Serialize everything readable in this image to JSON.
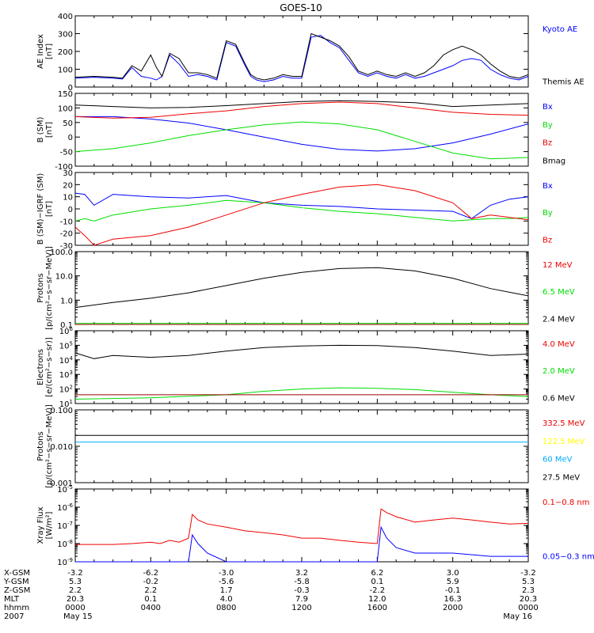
{
  "title": "GOES-10",
  "colors": {
    "black": "#000000",
    "blue": "#0000ff",
    "red": "#ee0000",
    "green": "#00dd00",
    "darkred": "#990000",
    "yellow": "#ffff00",
    "cyan": "#00aaff"
  },
  "chart_data": [
    {
      "type": "line",
      "id": "ae",
      "ylabel": [
        "AE Index",
        "[nT]"
      ],
      "scale": "linear",
      "ylim": [
        0,
        400
      ],
      "yticks": [
        0,
        100,
        200,
        300,
        400
      ],
      "ytick_labels": [
        "0",
        "100",
        "200",
        "300",
        "400"
      ],
      "series": [
        {
          "name": "Kyoto AE",
          "color": "#0000ff",
          "x": [
            0,
            1,
            2,
            2.5,
            3,
            3.5,
            4,
            4.3,
            4.6,
            5,
            5.5,
            6,
            6.5,
            7,
            7.5,
            8,
            8.5,
            9,
            9.3,
            9.6,
            10,
            10.5,
            11,
            11.5,
            12,
            12.5,
            13,
            13.5,
            14,
            14.5,
            15,
            15.5,
            16,
            16.5,
            17,
            17.5,
            18,
            18.5,
            19,
            19.5,
            20,
            20.5,
            21,
            21.5,
            22,
            22.5,
            23,
            23.5,
            24
          ],
          "y": [
            50,
            55,
            50,
            45,
            110,
            60,
            50,
            40,
            60,
            180,
            130,
            60,
            70,
            60,
            40,
            250,
            230,
            120,
            60,
            40,
            30,
            40,
            60,
            50,
            50,
            280,
            290,
            250,
            220,
            150,
            80,
            60,
            80,
            60,
            50,
            70,
            50,
            60,
            80,
            100,
            120,
            150,
            160,
            150,
            100,
            70,
            50,
            40,
            60
          ]
        },
        {
          "name": "Themis AE",
          "color": "#000000",
          "x": [
            0,
            1,
            2,
            2.5,
            3,
            3.5,
            4,
            4.3,
            4.6,
            5,
            5.5,
            6,
            6.5,
            7,
            7.5,
            8,
            8.5,
            9,
            9.3,
            9.6,
            10,
            10.5,
            11,
            11.5,
            12,
            12.5,
            13,
            13.5,
            14,
            14.5,
            15,
            15.5,
            16,
            16.5,
            17,
            17.5,
            18,
            18.5,
            19,
            19.5,
            20,
            20.5,
            21,
            21.5,
            22,
            22.5,
            23,
            23.5,
            24
          ],
          "y": [
            55,
            60,
            55,
            50,
            120,
            90,
            180,
            110,
            60,
            190,
            160,
            80,
            80,
            70,
            50,
            260,
            240,
            130,
            70,
            50,
            40,
            50,
            70,
            60,
            60,
            300,
            280,
            260,
            230,
            170,
            90,
            70,
            90,
            70,
            60,
            80,
            60,
            80,
            120,
            180,
            210,
            230,
            210,
            180,
            130,
            90,
            60,
            50,
            70
          ]
        }
      ],
      "legend": [
        {
          "label": "Kyoto AE",
          "color": "#0000ff"
        },
        {
          "label": "Themis AE",
          "color": "#000000"
        }
      ]
    },
    {
      "type": "line",
      "id": "bsm",
      "ylabel": [
        "B (SM)",
        "[nT]"
      ],
      "scale": "linear",
      "ylim": [
        -100,
        150
      ],
      "yticks": [
        -100,
        -50,
        0,
        50,
        100,
        150
      ],
      "ytick_labels": [
        "-100",
        "-50",
        "0",
        "50",
        "100",
        "150"
      ],
      "series": [
        {
          "name": "Bx",
          "color": "#0000ff",
          "x": [
            0,
            2,
            4,
            6,
            8,
            10,
            12,
            14,
            16,
            18,
            20,
            22,
            24
          ],
          "y": [
            70,
            70,
            62,
            48,
            25,
            0,
            -25,
            -42,
            -48,
            -40,
            -20,
            10,
            45
          ]
        },
        {
          "name": "By",
          "color": "#00dd00",
          "x": [
            0,
            2,
            4,
            6,
            8,
            10,
            12,
            14,
            16,
            18,
            20,
            22,
            24
          ],
          "y": [
            -50,
            -40,
            -20,
            5,
            25,
            42,
            52,
            45,
            25,
            -15,
            -55,
            -75,
            -70
          ]
        },
        {
          "name": "Bz",
          "color": "#ee0000",
          "x": [
            0,
            2,
            4,
            6,
            8,
            10,
            12,
            14,
            16,
            18,
            20,
            22,
            24
          ],
          "y": [
            70,
            65,
            68,
            80,
            90,
            105,
            115,
            120,
            115,
            100,
            85,
            78,
            75
          ]
        },
        {
          "name": "Bmag",
          "color": "#000000",
          "x": [
            0,
            2,
            4,
            6,
            8,
            10,
            12,
            14,
            16,
            18,
            20,
            22,
            24
          ],
          "y": [
            110,
            105,
            100,
            102,
            108,
            115,
            122,
            125,
            122,
            118,
            105,
            110,
            115
          ]
        }
      ],
      "legend": [
        {
          "label": "Bx",
          "color": "#0000ff"
        },
        {
          "label": "By",
          "color": "#00dd00"
        },
        {
          "label": "Bz",
          "color": "#ee0000"
        },
        {
          "label": "Bmag",
          "color": "#000000"
        }
      ]
    },
    {
      "type": "line",
      "id": "bigrf",
      "ylabel": [
        "B (SM)−IGRF (SM)",
        "[nT]"
      ],
      "scale": "linear",
      "ylim": [
        -30,
        30
      ],
      "yticks": [
        -30,
        -20,
        -10,
        0,
        10,
        20,
        30
      ],
      "ytick_labels": [
        "-30",
        "-20",
        "-10",
        "0",
        "10",
        "20",
        "30"
      ],
      "series": [
        {
          "name": "Bx",
          "color": "#0000ff",
          "x": [
            0,
            0.5,
            1,
            2,
            4,
            6,
            8,
            10,
            12,
            14,
            16,
            18,
            20,
            21,
            22,
            23,
            24
          ],
          "y": [
            13,
            12,
            3,
            12,
            10,
            9,
            11,
            5,
            3,
            2,
            0,
            -1,
            -2,
            -8,
            3,
            8,
            10
          ]
        },
        {
          "name": "By",
          "color": "#00dd00",
          "x": [
            0,
            0.5,
            1,
            2,
            4,
            6,
            8,
            10,
            12,
            14,
            16,
            18,
            20,
            21,
            22,
            23,
            24
          ],
          "y": [
            -10,
            -8,
            -10,
            -5,
            0,
            3,
            7,
            5,
            1,
            -2,
            -4,
            -7,
            -10,
            -9,
            -8,
            -8,
            -7
          ]
        },
        {
          "name": "Bz",
          "color": "#ee0000",
          "x": [
            0,
            0.5,
            1,
            2,
            4,
            6,
            8,
            10,
            12,
            14,
            16,
            18,
            20,
            21,
            22,
            23,
            24
          ],
          "y": [
            -15,
            -22,
            -30,
            -25,
            -22,
            -15,
            -5,
            5,
            12,
            18,
            20,
            15,
            5,
            -8,
            -5,
            -7,
            -9
          ]
        }
      ],
      "legend": [
        {
          "label": "Bx",
          "color": "#0000ff"
        },
        {
          "label": "By",
          "color": "#00dd00"
        },
        {
          "label": "Bz",
          "color": "#ee0000"
        }
      ]
    },
    {
      "type": "line",
      "id": "protons1",
      "ylabel": [
        "Protons",
        "[p/(cm²−s−sr−MeV)]"
      ],
      "scale": "log",
      "ylim": [
        0.1,
        100
      ],
      "yticks": [
        0.1,
        1,
        10,
        100
      ],
      "ytick_labels": [
        "0.1",
        "1.0",
        "10.0",
        "100.0"
      ],
      "series": [
        {
          "name": "2.4 MeV",
          "color": "#000000",
          "x": [
            0,
            2,
            4,
            6,
            8,
            10,
            12,
            14,
            16,
            18,
            20,
            22,
            24
          ],
          "y": [
            0.5,
            0.8,
            1.2,
            2,
            4,
            8,
            14,
            20,
            22,
            16,
            8,
            3,
            1.5
          ]
        },
        {
          "name": "6.5 MeV",
          "color": "#00dd00",
          "x": [
            0,
            12,
            24
          ],
          "y": [
            0.11,
            0.11,
            0.11
          ]
        },
        {
          "name": "12 MeV",
          "color": "#990000",
          "x": [
            0,
            12,
            24
          ],
          "y": [
            0.1,
            0.1,
            0.1
          ]
        }
      ],
      "legend": [
        {
          "label": "12 MeV",
          "color": "#ee0000"
        },
        {
          "label": "6.5 MeV",
          "color": "#00dd00"
        },
        {
          "label": "2.4 MeV",
          "color": "#000000"
        }
      ]
    },
    {
      "type": "line",
      "id": "electrons",
      "ylabel": [
        "Electrons",
        "[e/(cm²−s−sr)]"
      ],
      "scale": "log",
      "ylim": [
        10,
        1000000
      ],
      "yticks": [
        10,
        100,
        1000,
        10000,
        100000,
        1000000
      ],
      "ytick_labels": [
        "10^1",
        "10^2",
        "10^3",
        "10^4",
        "10^5",
        "10^6"
      ],
      "series": [
        {
          "name": "0.6 MeV",
          "color": "#000000",
          "x": [
            0,
            1,
            2,
            4,
            6,
            8,
            10,
            12,
            14,
            16,
            18,
            20,
            22,
            24
          ],
          "y": [
            30000,
            12000,
            20000,
            15000,
            20000,
            40000,
            70000,
            90000,
            100000,
            95000,
            70000,
            40000,
            20000,
            25000
          ]
        },
        {
          "name": "2.0 MeV",
          "color": "#00dd00",
          "x": [
            0,
            4,
            8,
            10,
            12,
            14,
            16,
            18,
            20,
            22,
            24
          ],
          "y": [
            20,
            25,
            40,
            70,
            100,
            120,
            110,
            90,
            60,
            40,
            30
          ]
        },
        {
          "name": "4.0 MeV",
          "color": "#990000",
          "x": [
            0,
            24
          ],
          "y": [
            40,
            40
          ]
        }
      ],
      "legend": [
        {
          "label": "4.0 MeV",
          "color": "#ee0000"
        },
        {
          "label": "2.0 MeV",
          "color": "#00dd00"
        },
        {
          "label": "0.6 MeV",
          "color": "#000000"
        }
      ]
    },
    {
      "type": "line",
      "id": "protons2",
      "ylabel": [
        "Protons",
        "[p/(cm²−s−sr−MeV)]"
      ],
      "scale": "log",
      "ylim": [
        0.001,
        0.1
      ],
      "yticks": [
        0.001,
        0.01,
        0.1
      ],
      "ytick_labels": [
        "0.001",
        "0.010",
        "0.100"
      ],
      "series": [
        {
          "name": "27.5 MeV",
          "color": "#000000",
          "x": [
            0,
            24
          ],
          "y": [
            0.02,
            0.02
          ]
        },
        {
          "name": "60 MeV",
          "color": "#00aaff",
          "x": [
            0,
            24
          ],
          "y": [
            0.013,
            0.013
          ]
        }
      ],
      "legend": [
        {
          "label": "332.5 MeV",
          "color": "#ee0000"
        },
        {
          "label": "122.5 MeV",
          "color": "#ffff00"
        },
        {
          "label": "60 MeV",
          "color": "#00aaff"
        },
        {
          "label": "27.5 MeV",
          "color": "#000000"
        }
      ]
    },
    {
      "type": "line",
      "id": "xray",
      "ylabel": [
        "Xray Flux",
        "[W/m²]"
      ],
      "scale": "log",
      "ylim": [
        1e-09,
        1e-05
      ],
      "yticks": [
        1e-09,
        1e-08,
        1e-07,
        1e-06,
        1e-05
      ],
      "ytick_labels": [
        "10^-9",
        "10^-8",
        "10^-7",
        "10^-6",
        "10^-5"
      ],
      "series": [
        {
          "name": "0.1-0.8 nm",
          "color": "#ee0000",
          "x": [
            0,
            1,
            2,
            3,
            4,
            4.5,
            5,
            5.5,
            6,
            6.2,
            6.5,
            7,
            8,
            9,
            10,
            11,
            12,
            13,
            14,
            15,
            16,
            16.2,
            16.5,
            17,
            18,
            19,
            20,
            21,
            22,
            23,
            24
          ],
          "y": [
            9e-09,
            9e-09,
            9e-09,
            1e-08,
            1.2e-08,
            1e-08,
            1.5e-08,
            1.2e-08,
            2e-08,
            4e-07,
            2e-07,
            1.2e-07,
            8e-08,
            5e-08,
            4e-08,
            3e-08,
            2e-08,
            2e-08,
            1.5e-08,
            1.2e-08,
            1e-08,
            8e-07,
            5e-07,
            3e-07,
            1.5e-07,
            2e-07,
            2.5e-07,
            2e-07,
            1.5e-07,
            1.2e-07,
            1.3e-07
          ]
        },
        {
          "name": "0.05-0.3 nm",
          "color": "#0000ff",
          "x": [
            0,
            2,
            4,
            6,
            6.2,
            6.5,
            7,
            8,
            10,
            12,
            14,
            16,
            16.2,
            16.5,
            17,
            18,
            20,
            22,
            24
          ],
          "y": [
            1e-09,
            1e-09,
            1e-09,
            1e-09,
            3e-08,
            1e-08,
            3e-09,
            1e-09,
            1e-09,
            1e-09,
            1e-09,
            1e-09,
            8e-08,
            2e-08,
            6e-09,
            3e-09,
            3e-09,
            2e-09,
            2e-09
          ]
        }
      ],
      "legend": [
        {
          "label": "0.1−0.8 nm",
          "color": "#ee0000"
        },
        {
          "label": "0.05−0.3 nm",
          "color": "#0000ff"
        }
      ]
    }
  ],
  "footer": {
    "row_labels": [
      "X-GSM",
      "Y-GSM",
      "Z-GSM",
      "MLT",
      "hhmm",
      "2007"
    ],
    "columns": [
      {
        "values": [
          "-3.2",
          "5.3",
          "2.2",
          "20.3",
          "0000",
          "May 15"
        ]
      },
      {
        "values": [
          "-6.2",
          "-0.2",
          "2.2",
          "0.1",
          "0400",
          ""
        ]
      },
      {
        "values": [
          "-3.0",
          "-5.6",
          "1.7",
          "4.0",
          "0800",
          ""
        ]
      },
      {
        "values": [
          "3.2",
          "-5.8",
          "-0.3",
          "7.9",
          "1200",
          ""
        ]
      },
      {
        "values": [
          "6.2",
          "0.1",
          "-2.2",
          "12.0",
          "1600",
          ""
        ]
      },
      {
        "values": [
          "3.0",
          "5.9",
          "-0.1",
          "16.3",
          "2000",
          ""
        ]
      },
      {
        "values": [
          "-3.2",
          "5.3",
          "2.3",
          "20.3",
          "0000",
          "May 16"
        ]
      }
    ]
  }
}
